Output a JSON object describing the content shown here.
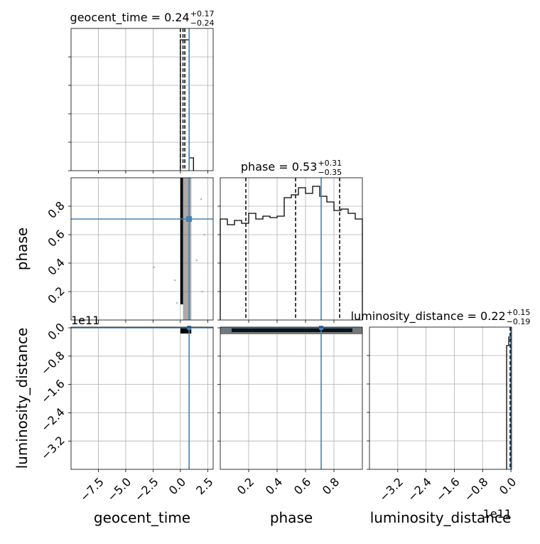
{
  "chart_data": {
    "type": "corner",
    "parameters": [
      "geocent_time",
      "phase",
      "luminosity_distance"
    ],
    "truths": {
      "geocent_time": 0.8,
      "phase": 0.71,
      "luminosity_distance": 0.0
    },
    "titles": {
      "geocent_time": {
        "main": "geocent_time = 0.24",
        "sup": "+0.17",
        "sub": "−0.24"
      },
      "phase": {
        "main": "phase = 0.53",
        "sup": "+0.31",
        "sub": "−0.35"
      },
      "luminosity_distance": {
        "main": "luminosity_distance = 0.22",
        "sup": "+0.15",
        "sub": "−0.19"
      }
    },
    "offset_text": "1e11",
    "xlim": {
      "geocent_time": [
        -10,
        3
      ],
      "phase": [
        0,
        1
      ],
      "luminosity_distance": [
        -4.0,
        0.02
      ]
    },
    "ylim": {
      "phase": [
        0,
        1
      ],
      "luminosity_distance": [
        -4.0,
        0.02
      ]
    },
    "ticks": {
      "geocent_time": [
        -7.5,
        -5.0,
        -2.5,
        0.0,
        2.5
      ],
      "geocent_time_labels": [
        "−7.5",
        "−5.0",
        "−2.5",
        "0.0",
        "2.5"
      ],
      "phase_x": [
        0.2,
        0.4,
        0.6,
        0.8
      ],
      "phase_x_labels": [
        "0.2",
        "0.4",
        "0.6",
        "0.8"
      ],
      "phase_y": [
        0.2,
        0.4,
        0.6,
        0.8
      ],
      "phase_y_labels": [
        "0.2",
        "0.4",
        "0.6",
        "0.8"
      ],
      "lum": [
        -3.2,
        -2.4,
        -1.6,
        -0.8,
        0.0
      ],
      "lum_labels": [
        "−3.2",
        "−2.4",
        "−1.6",
        "−0.8",
        "0.0"
      ]
    },
    "quantiles": {
      "geocent_time": [
        0.0,
        0.24,
        0.41
      ],
      "phase": [
        0.18,
        0.53,
        0.84
      ]
    },
    "hist_geocent": {
      "edges": [
        0.0,
        0.2,
        0.4,
        0.6,
        0.8,
        1.0,
        1.2
      ],
      "counts": [
        0.92,
        0.92,
        0.92,
        0.92,
        0.09,
        0.09
      ]
    },
    "hist_phase": {
      "edges": [
        0.0,
        0.05,
        0.1,
        0.15,
        0.2,
        0.25,
        0.3,
        0.35,
        0.4,
        0.45,
        0.5,
        0.55,
        0.6,
        0.65,
        0.7,
        0.75,
        0.8,
        0.85,
        0.9,
        0.95,
        1.0
      ],
      "counts": [
        0.71,
        0.67,
        0.7,
        0.68,
        0.75,
        0.71,
        0.73,
        0.72,
        0.73,
        0.86,
        0.88,
        0.93,
        0.89,
        0.94,
        0.87,
        0.83,
        0.77,
        0.78,
        0.75,
        0.71
      ]
    },
    "hist_lum": {
      "edges": [
        -0.12,
        -0.06,
        0.0
      ],
      "counts": [
        0.87,
        0.93
      ]
    },
    "grid": true
  }
}
